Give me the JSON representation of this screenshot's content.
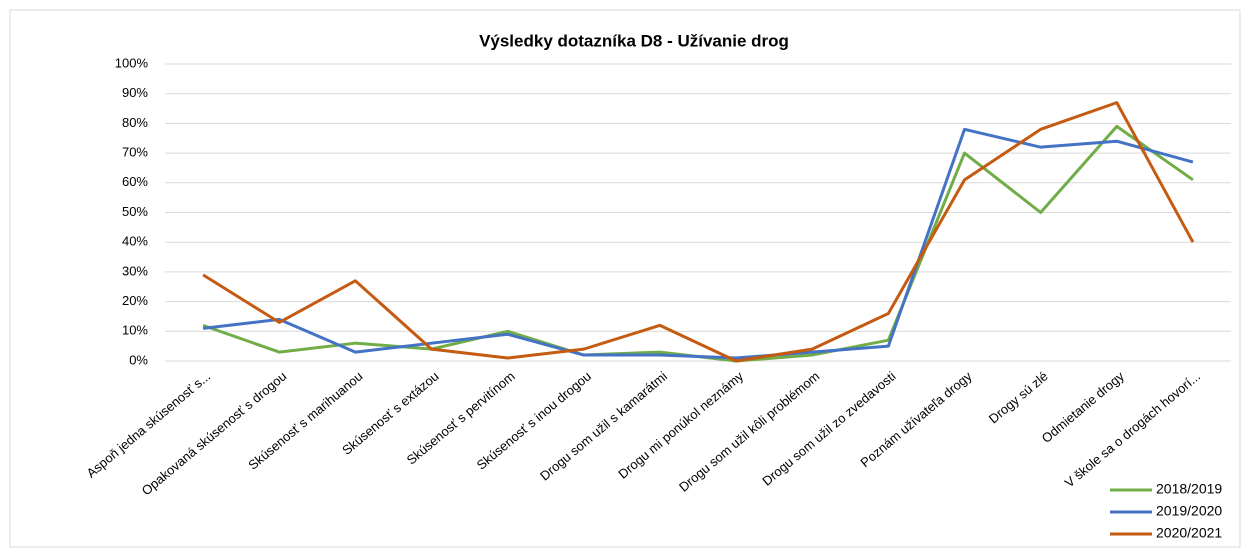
{
  "chart_data": {
    "type": "line",
    "title": "Výsledky dotazníka D8 - Užívanie drog",
    "categories": [
      "Aspoň jedna skúsenosť s...",
      "Opakovaná skúsenosť s drogou",
      "Skúsenosť s marihuanou",
      "Skúsenosť s extázou",
      "Skúsenosť s pervitínom",
      "Skúsenosť s inou drogou",
      "Drogu som užil s kamarátmi",
      "Drogu mi ponúkol neznámy",
      "Drogu som užil kôli problémom",
      "Drogu som užil zo zvedavosti",
      "Poznám užívateľa drogy",
      "Drogy sú zlé",
      "Odmietanie drogy",
      "V škole sa o drogách hovorí..."
    ],
    "series": [
      {
        "name": "2018/2019",
        "color": "#70ad47",
        "values": [
          12,
          3,
          6,
          4,
          10,
          2,
          3,
          0,
          2,
          7,
          70,
          50,
          79,
          61
        ]
      },
      {
        "name": "2019/2020",
        "color": "#4472c4",
        "values": [
          11,
          14,
          3,
          6,
          9,
          2,
          2,
          1,
          3,
          5,
          78,
          72,
          74,
          67
        ]
      },
      {
        "name": "2020/2021",
        "color": "#c55a11",
        "values": [
          29,
          13,
          27,
          4,
          1,
          4,
          12,
          0,
          4,
          16,
          61,
          78,
          87,
          40
        ]
      }
    ],
    "ylim": [
      0,
      100
    ],
    "yticks": [
      {
        "value": 0,
        "label": "0%"
      },
      {
        "value": 10,
        "label": "10%"
      },
      {
        "value": 20,
        "label": "20%"
      },
      {
        "value": 30,
        "label": "30%"
      },
      {
        "value": 40,
        "label": "40%"
      },
      {
        "value": 50,
        "label": "50%"
      },
      {
        "value": 60,
        "label": "60%"
      },
      {
        "value": 70,
        "label": "70%"
      },
      {
        "value": 80,
        "label": "80%"
      },
      {
        "value": 90,
        "label": "90%"
      },
      {
        "value": 100,
        "label": "100%"
      }
    ],
    "grid": true,
    "legend": "bottom-right"
  }
}
